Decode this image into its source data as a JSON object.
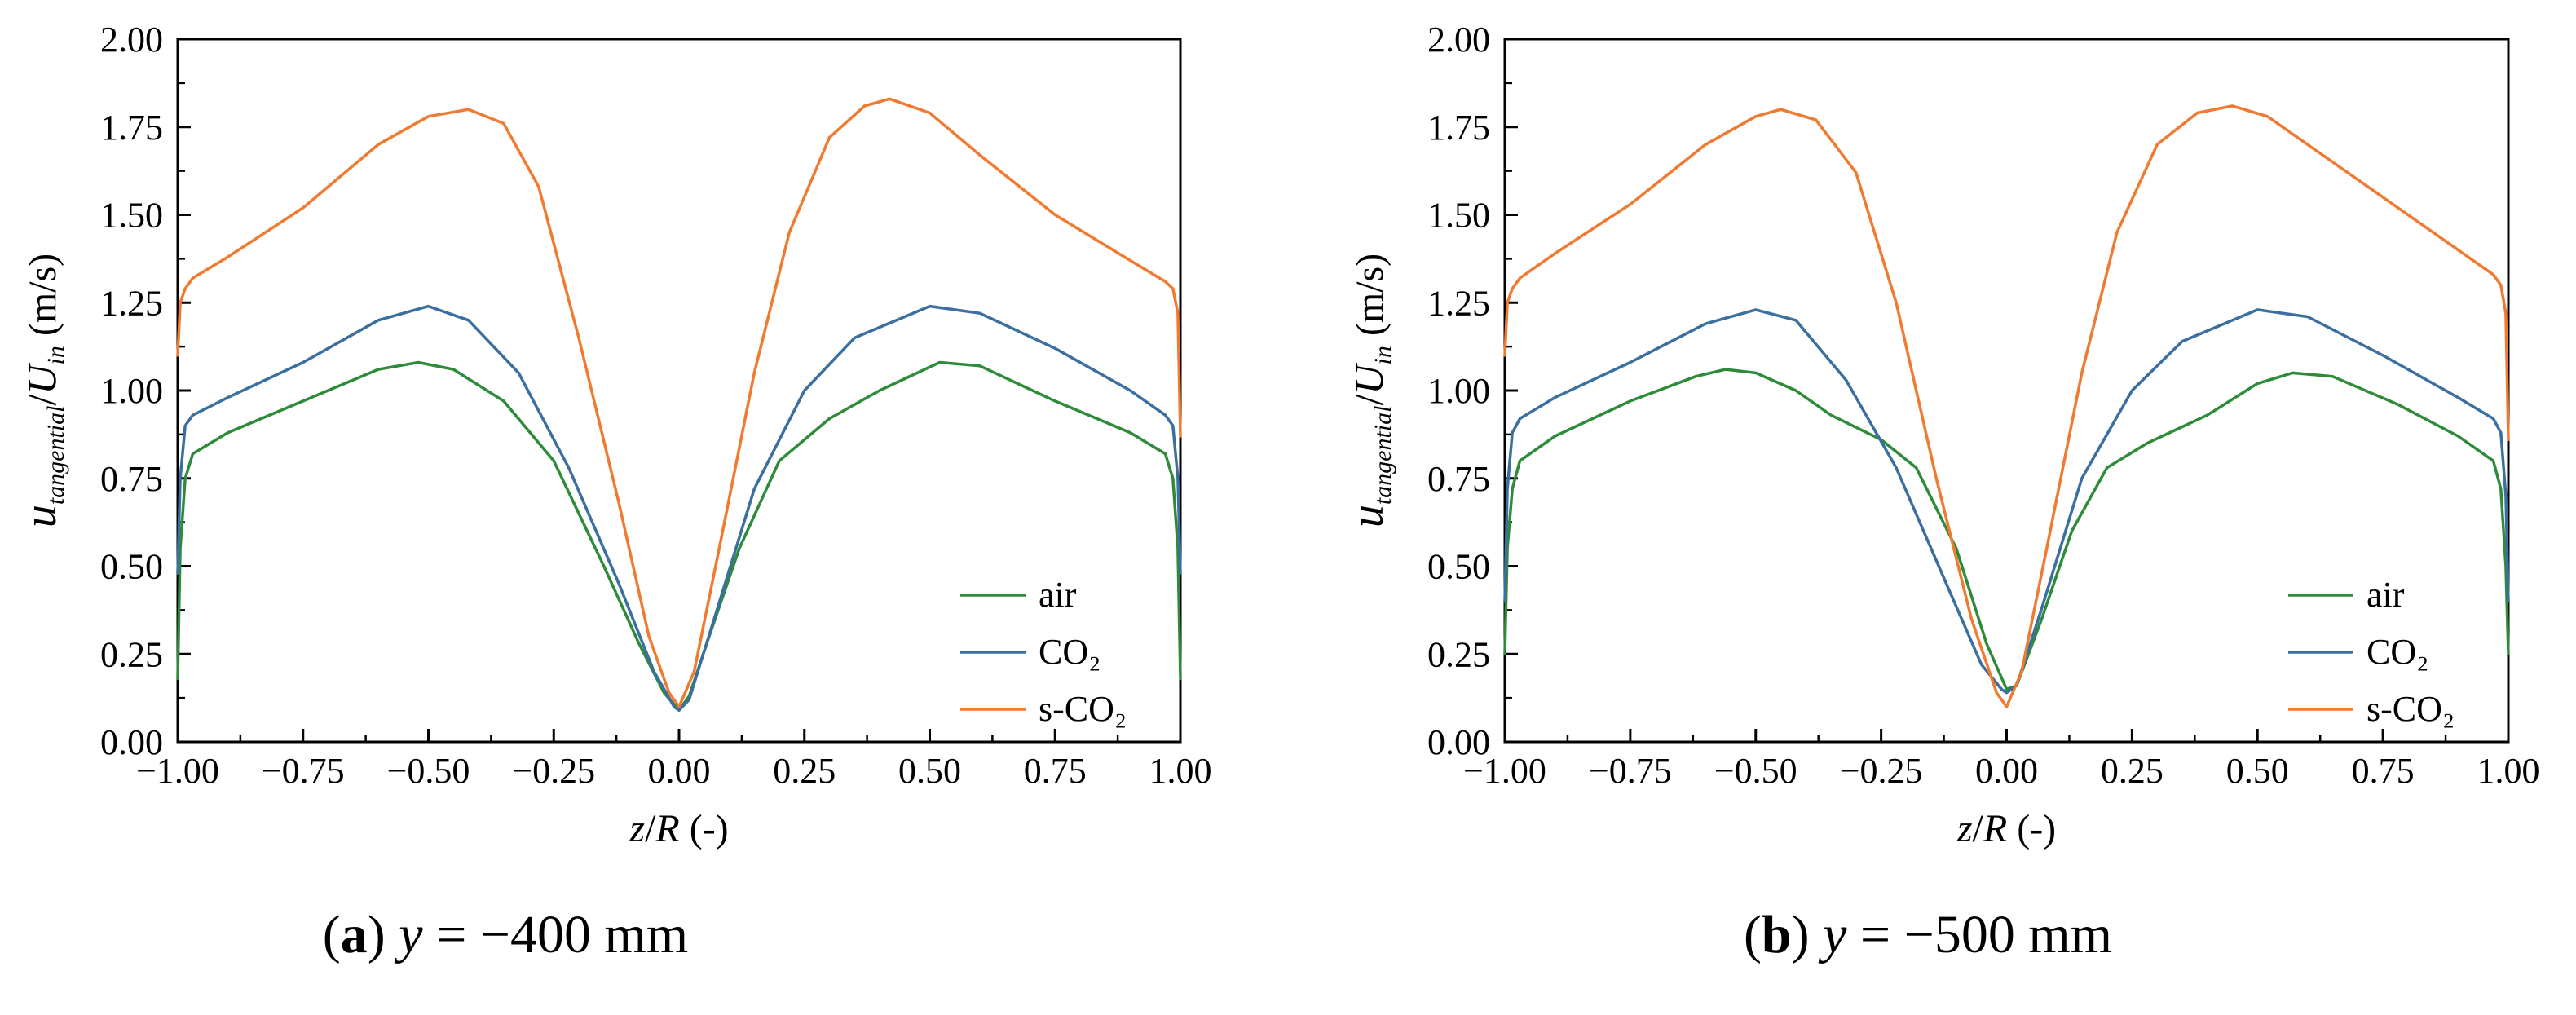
{
  "page": {
    "captions": [
      {
        "tag": "(a)",
        "bold_letter": "a",
        "variable": "y",
        "rest": " = −400 mm"
      },
      {
        "tag": "(b)",
        "bold_letter": "b",
        "variable": "y",
        "rest": " = −500 mm"
      }
    ]
  },
  "colors": {
    "air": "#2e8b3a",
    "CO2": "#3a6fa0",
    "s-CO2": "#f07a30"
  },
  "chart_data": [
    {
      "type": "line",
      "panel": "a",
      "title": "",
      "xlabel": "z/R (-)",
      "ylabel": "u_tangential/U_in (m/s)",
      "xlim": [
        -1.0,
        1.0
      ],
      "ylim": [
        0.0,
        2.0
      ],
      "xticks": [
        "−1.00",
        "−0.75",
        "−0.50",
        "−0.25",
        "0.00",
        "0.25",
        "0.50",
        "0.75",
        "1.00"
      ],
      "yticks": [
        "0.00",
        "0.25",
        "0.50",
        "0.75",
        "1.00",
        "1.25",
        "1.50",
        "1.75",
        "2.00"
      ],
      "legend_position": "bottom-right",
      "series": [
        {
          "name": "air",
          "x": [
            -1.0,
            -0.995,
            -0.985,
            -0.97,
            -0.9,
            -0.75,
            -0.6,
            -0.52,
            -0.45,
            -0.35,
            -0.25,
            -0.15,
            -0.08,
            -0.03,
            0.0,
            0.02,
            0.06,
            0.12,
            0.2,
            0.3,
            0.4,
            0.52,
            0.6,
            0.75,
            0.9,
            0.97,
            0.985,
            0.995,
            1.0
          ],
          "y": [
            0.18,
            0.55,
            0.75,
            0.82,
            0.88,
            0.97,
            1.06,
            1.08,
            1.06,
            0.97,
            0.8,
            0.5,
            0.28,
            0.14,
            0.09,
            0.13,
            0.3,
            0.55,
            0.8,
            0.92,
            1.0,
            1.08,
            1.07,
            0.97,
            0.88,
            0.82,
            0.75,
            0.55,
            0.18
          ]
        },
        {
          "name": "CO₂",
          "x": [
            -1.0,
            -0.995,
            -0.985,
            -0.97,
            -0.9,
            -0.75,
            -0.6,
            -0.5,
            -0.42,
            -0.32,
            -0.22,
            -0.12,
            -0.05,
            -0.01,
            0.0,
            0.02,
            0.07,
            0.15,
            0.25,
            0.35,
            0.5,
            0.6,
            0.75,
            0.9,
            0.97,
            0.985,
            0.995,
            1.0
          ],
          "y": [
            0.48,
            0.75,
            0.9,
            0.93,
            0.98,
            1.08,
            1.2,
            1.24,
            1.2,
            1.05,
            0.78,
            0.45,
            0.2,
            0.1,
            0.09,
            0.12,
            0.35,
            0.72,
            1.0,
            1.15,
            1.24,
            1.22,
            1.12,
            1.0,
            0.93,
            0.9,
            0.75,
            0.48
          ]
        },
        {
          "name": "s-CO₂",
          "x": [
            -1.0,
            -0.995,
            -0.985,
            -0.97,
            -0.9,
            -0.75,
            -0.6,
            -0.5,
            -0.42,
            -0.35,
            -0.28,
            -0.2,
            -0.12,
            -0.06,
            -0.02,
            0.0,
            0.03,
            0.08,
            0.15,
            0.22,
            0.3,
            0.37,
            0.42,
            0.5,
            0.6,
            0.75,
            0.9,
            0.97,
            0.985,
            0.995,
            1.0
          ],
          "y": [
            1.1,
            1.25,
            1.29,
            1.32,
            1.38,
            1.52,
            1.7,
            1.78,
            1.8,
            1.76,
            1.58,
            1.15,
            0.68,
            0.3,
            0.14,
            0.1,
            0.2,
            0.55,
            1.05,
            1.45,
            1.72,
            1.81,
            1.83,
            1.79,
            1.67,
            1.5,
            1.37,
            1.31,
            1.29,
            1.22,
            0.87
          ]
        }
      ]
    },
    {
      "type": "line",
      "panel": "b",
      "title": "",
      "xlabel": "z/R (-)",
      "ylabel": "u_tangential/U_in (m/s)",
      "xlim": [
        -1.0,
        1.0
      ],
      "ylim": [
        0.0,
        2.0
      ],
      "xticks": [
        "−1.00",
        "−0.75",
        "−0.50",
        "−0.25",
        "0.00",
        "0.25",
        "0.50",
        "0.75",
        "1.00"
      ],
      "yticks": [
        "0.00",
        "0.25",
        "0.50",
        "0.75",
        "1.00",
        "1.25",
        "1.50",
        "1.75",
        "2.00"
      ],
      "legend_position": "bottom-right",
      "series": [
        {
          "name": "air",
          "x": [
            -1.0,
            -0.995,
            -0.985,
            -0.97,
            -0.9,
            -0.75,
            -0.62,
            -0.56,
            -0.5,
            -0.42,
            -0.35,
            -0.25,
            -0.18,
            -0.1,
            -0.04,
            0.0,
            0.02,
            0.07,
            0.13,
            0.2,
            0.28,
            0.4,
            0.5,
            0.57,
            0.65,
            0.78,
            0.9,
            0.97,
            0.985,
            0.995,
            1.0
          ],
          "y": [
            0.25,
            0.55,
            0.72,
            0.8,
            0.87,
            0.97,
            1.04,
            1.06,
            1.05,
            1.0,
            0.93,
            0.86,
            0.78,
            0.55,
            0.28,
            0.15,
            0.16,
            0.35,
            0.6,
            0.78,
            0.85,
            0.93,
            1.02,
            1.05,
            1.04,
            0.96,
            0.87,
            0.8,
            0.72,
            0.5,
            0.25
          ]
        },
        {
          "name": "CO₂",
          "x": [
            -1.0,
            -0.995,
            -0.985,
            -0.97,
            -0.9,
            -0.75,
            -0.6,
            -0.5,
            -0.42,
            -0.32,
            -0.22,
            -0.12,
            -0.05,
            -0.01,
            0.0,
            0.02,
            0.07,
            0.15,
            0.25,
            0.35,
            0.5,
            0.6,
            0.75,
            0.9,
            0.97,
            0.985,
            0.995,
            1.0
          ],
          "y": [
            0.4,
            0.72,
            0.88,
            0.92,
            0.98,
            1.08,
            1.19,
            1.23,
            1.2,
            1.03,
            0.78,
            0.45,
            0.22,
            0.15,
            0.14,
            0.16,
            0.38,
            0.75,
            1.0,
            1.14,
            1.23,
            1.21,
            1.1,
            0.98,
            0.92,
            0.88,
            0.7,
            0.4
          ]
        },
        {
          "name": "s-CO₂",
          "x": [
            -1.0,
            -0.995,
            -0.985,
            -0.97,
            -0.9,
            -0.75,
            -0.6,
            -0.5,
            -0.45,
            -0.38,
            -0.3,
            -0.22,
            -0.14,
            -0.07,
            -0.02,
            0.0,
            0.03,
            0.08,
            0.15,
            0.22,
            0.3,
            0.38,
            0.45,
            0.52,
            0.6,
            0.75,
            0.9,
            0.97,
            0.985,
            0.995,
            1.0
          ],
          "y": [
            1.1,
            1.25,
            1.29,
            1.32,
            1.39,
            1.53,
            1.7,
            1.78,
            1.8,
            1.77,
            1.62,
            1.25,
            0.75,
            0.35,
            0.14,
            0.1,
            0.2,
            0.55,
            1.05,
            1.45,
            1.7,
            1.79,
            1.81,
            1.78,
            1.7,
            1.55,
            1.4,
            1.33,
            1.3,
            1.22,
            0.86
          ]
        }
      ]
    }
  ]
}
